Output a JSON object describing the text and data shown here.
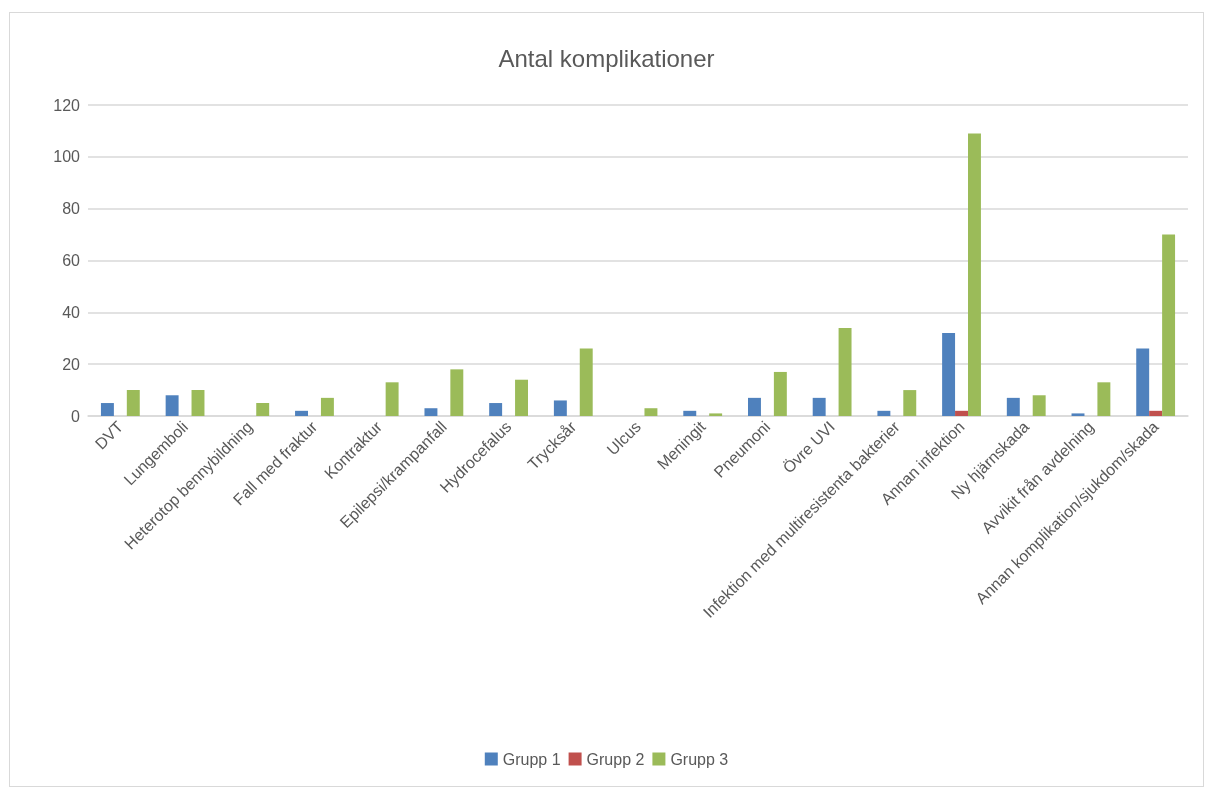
{
  "chart_data": {
    "type": "bar",
    "title": "Antal komplikationer",
    "categories": [
      "DVT",
      "Lungemboli",
      "Heterotop bennybildning",
      "Fall med fraktur",
      "Kontraktur",
      "Epilepsi/krampanfall",
      "Hydrocefalus",
      "Trycksår",
      "Ulcus",
      "Meningit",
      "Pneumoni",
      "Övre UVI",
      "Infektion med multiresistenta bakterier",
      "Annan infektion",
      "Ny hjärnskada",
      "Avvikit från avdelning",
      "Annan komplikation/sjukdom/skada"
    ],
    "series": [
      {
        "name": "Grupp 1",
        "color": "#4f81bd",
        "values": [
          5,
          8,
          0,
          2,
          0,
          3,
          5,
          6,
          0,
          2,
          7,
          7,
          2,
          32,
          7,
          1,
          26
        ]
      },
      {
        "name": "Grupp 2",
        "color": "#c0504d",
        "values": [
          0,
          0,
          0,
          0,
          0,
          0,
          0,
          0,
          0,
          0,
          0,
          0,
          0,
          2,
          0,
          0,
          2
        ]
      },
      {
        "name": "Grupp 3",
        "color": "#9bbb59",
        "values": [
          10,
          10,
          5,
          7,
          13,
          18,
          14,
          26,
          3,
          1,
          17,
          34,
          10,
          109,
          8,
          13,
          70
        ]
      }
    ],
    "ylim": [
      0,
      120
    ],
    "yticks": [
      0,
      20,
      40,
      60,
      80,
      100,
      120
    ],
    "grid": "y",
    "legend": "bottom"
  }
}
